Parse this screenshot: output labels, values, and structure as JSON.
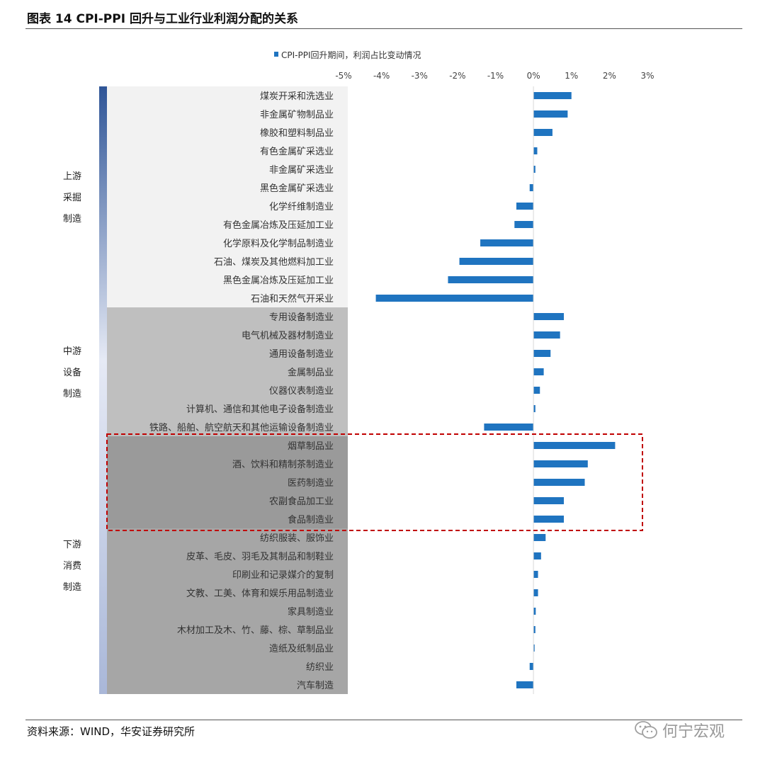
{
  "figure": {
    "title": "图表 14 CPI-PPI 回升与工业行业利润分配的关系",
    "source": "资料来源：WIND，华安证券研究所",
    "watermark": "何宁宏观"
  },
  "colors": {
    "bar": "#1f74c0",
    "upstream_band": "#f2f2f2",
    "midstream_band": "#bfbfbf",
    "downstream_band": "#a6a6a6",
    "gradient_top": "#2f5597",
    "gradient_mid": "#e6eaf5",
    "gradient_bottom": "#a9b7d8",
    "highlight_border": "#c00000"
  },
  "chart_data": {
    "type": "bar",
    "orientation": "horizontal",
    "series": [
      {
        "name": "CPI-PPI回升期间，利润占比变动情况"
      }
    ],
    "xlim": [
      -5,
      3
    ],
    "xticks": [
      "-5%",
      "-4%",
      "-3%",
      "-2%",
      "-1%",
      "0%",
      "1%",
      "2%",
      "3%"
    ],
    "legend_position": "top",
    "grid": false,
    "groups": [
      {
        "label_lines": [
          "上游",
          "采掘",
          "制造"
        ],
        "start": 0,
        "end": 11
      },
      {
        "label_lines": [
          "中游",
          "设备",
          "制造"
        ],
        "start": 12,
        "end": 18
      },
      {
        "label_lines": [
          "下游",
          "消费",
          "制造"
        ],
        "start": 19,
        "end": 32
      }
    ],
    "highlight": {
      "start": 19,
      "end": 23
    },
    "categories": [
      "煤炭开采和洗选业",
      "非金属矿物制品业",
      "橡胶和塑料制品业",
      "有色金属矿采选业",
      "非金属矿采选业",
      "黑色金属矿采选业",
      "化学纤维制造业",
      "有色金属冶炼及压延加工业",
      "化学原料及化学制品制造业",
      "石油、煤炭及其他燃料加工业",
      "黑色金属冶炼及压延加工业",
      "石油和天然气开采业",
      "专用设备制造业",
      "电气机械及器材制造业",
      "通用设备制造业",
      "金属制品业",
      "仪器仪表制造业",
      "计算机、通信和其他电子设备制造业",
      "铁路、船舶、航空航天和其他运输设备制造业",
      "烟草制品业",
      "酒、饮料和精制茶制造业",
      "医药制造业",
      "农副食品加工业",
      "食品制造业",
      "纺织服装、服饰业",
      "皮革、毛皮、羽毛及其制品和制鞋业",
      "印刷业和记录媒介的复制",
      "文教、工美、体育和娱乐用品制造业",
      "家具制造业",
      "木材加工及木、竹、藤、棕、草制品业",
      "造纸及纸制品业",
      "纺织业",
      "汽车制造"
    ],
    "values": [
      1.0,
      0.9,
      0.5,
      0.1,
      0.05,
      -0.1,
      -0.45,
      -0.5,
      -1.4,
      -1.95,
      -2.25,
      -4.15,
      0.8,
      0.7,
      0.45,
      0.27,
      0.17,
      0.05,
      -1.3,
      2.15,
      1.43,
      1.35,
      0.8,
      0.8,
      0.32,
      0.2,
      0.12,
      0.12,
      0.06,
      0.05,
      0.03,
      -0.1,
      -0.45
    ]
  }
}
